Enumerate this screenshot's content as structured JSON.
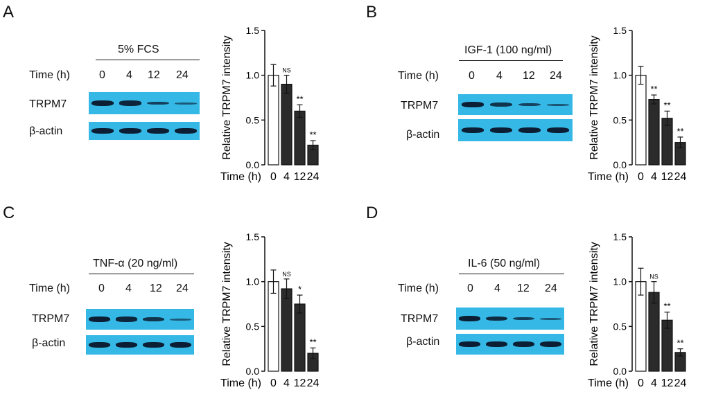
{
  "time_label": "Time (h)",
  "times": [
    "0",
    "4",
    "12",
    "24"
  ],
  "row_labels": {
    "target": "TRPM7",
    "loading": "β-actin"
  },
  "panels": [
    {
      "label": "A",
      "treatment": "5% FCS"
    },
    {
      "label": "B",
      "treatment": "IGF-1 (100 ng/ml)"
    },
    {
      "label": "C",
      "treatment": "TNF-α (20 ng/ml)"
    },
    {
      "label": "D",
      "treatment": "IL-6 (50 ng/ml)"
    }
  ],
  "chart_data": [
    {
      "type": "bar",
      "panel": "A",
      "ylabel": "Relative TRPM7 intensity",
      "xlabel": "Time (h)",
      "categories": [
        "0",
        "4",
        "12",
        "24"
      ],
      "values": [
        1.0,
        0.9,
        0.6,
        0.22
      ],
      "errors": [
        0.12,
        0.1,
        0.07,
        0.05
      ],
      "significance": [
        "",
        "NS",
        "**",
        "**"
      ],
      "ylim": [
        0,
        1.5
      ],
      "yticks": [
        "0.0",
        "0.5",
        "1.0",
        "1.5"
      ],
      "bar_colors": [
        "#ffffff",
        "#2b2b2b",
        "#2b2b2b",
        "#2b2b2b"
      ]
    },
    {
      "type": "bar",
      "panel": "B",
      "ylabel": "Relative TRPM7 intensity",
      "xlabel": "Time (h)",
      "categories": [
        "0",
        "4",
        "12",
        "24"
      ],
      "values": [
        1.0,
        0.73,
        0.52,
        0.25
      ],
      "errors": [
        0.1,
        0.05,
        0.08,
        0.06
      ],
      "significance": [
        "",
        "**",
        "**",
        "**"
      ],
      "ylim": [
        0,
        1.5
      ],
      "yticks": [
        "0.0",
        "0.5",
        "1.0",
        "1.5"
      ],
      "bar_colors": [
        "#ffffff",
        "#2b2b2b",
        "#2b2b2b",
        "#2b2b2b"
      ]
    },
    {
      "type": "bar",
      "panel": "C",
      "ylabel": "Relative TRPM7 intensity",
      "xlabel": "Time (h)",
      "categories": [
        "0",
        "4",
        "12",
        "24"
      ],
      "values": [
        1.0,
        0.92,
        0.75,
        0.2
      ],
      "errors": [
        0.13,
        0.11,
        0.1,
        0.06
      ],
      "significance": [
        "",
        "NS",
        "*",
        "**"
      ],
      "ylim": [
        0,
        1.5
      ],
      "yticks": [
        "0.0",
        "0.5",
        "1.0",
        "1.5"
      ],
      "bar_colors": [
        "#ffffff",
        "#2b2b2b",
        "#2b2b2b",
        "#2b2b2b"
      ]
    },
    {
      "type": "bar",
      "panel": "D",
      "ylabel": "Relative TRPM7 intensity",
      "xlabel": "Time (h)",
      "categories": [
        "0",
        "4",
        "12",
        "24"
      ],
      "values": [
        1.0,
        0.88,
        0.57,
        0.21
      ],
      "errors": [
        0.15,
        0.12,
        0.09,
        0.04
      ],
      "significance": [
        "",
        "NS",
        "**",
        "**"
      ],
      "ylim": [
        0,
        1.5
      ],
      "yticks": [
        "0.0",
        "0.5",
        "1.0",
        "1.5"
      ],
      "bar_colors": [
        "#ffffff",
        "#2b2b2b",
        "#2b2b2b",
        "#2b2b2b"
      ]
    }
  ],
  "blot_colors": {
    "membrane": "#35b8e6",
    "band": "#0c1e33"
  },
  "band_intensity": {
    "A": {
      "target": [
        1.0,
        0.9,
        0.6,
        0.3
      ],
      "loading": [
        1.0,
        1.0,
        1.0,
        1.0
      ]
    },
    "B": {
      "target": [
        1.0,
        0.75,
        0.55,
        0.35
      ],
      "loading": [
        1.0,
        1.0,
        1.0,
        1.0
      ]
    },
    "C": {
      "target": [
        1.0,
        0.9,
        0.75,
        0.3
      ],
      "loading": [
        1.0,
        1.0,
        1.0,
        1.0
      ]
    },
    "D": {
      "target": [
        1.0,
        0.85,
        0.6,
        0.3
      ],
      "loading": [
        1.0,
        1.0,
        1.0,
        1.0
      ]
    }
  }
}
